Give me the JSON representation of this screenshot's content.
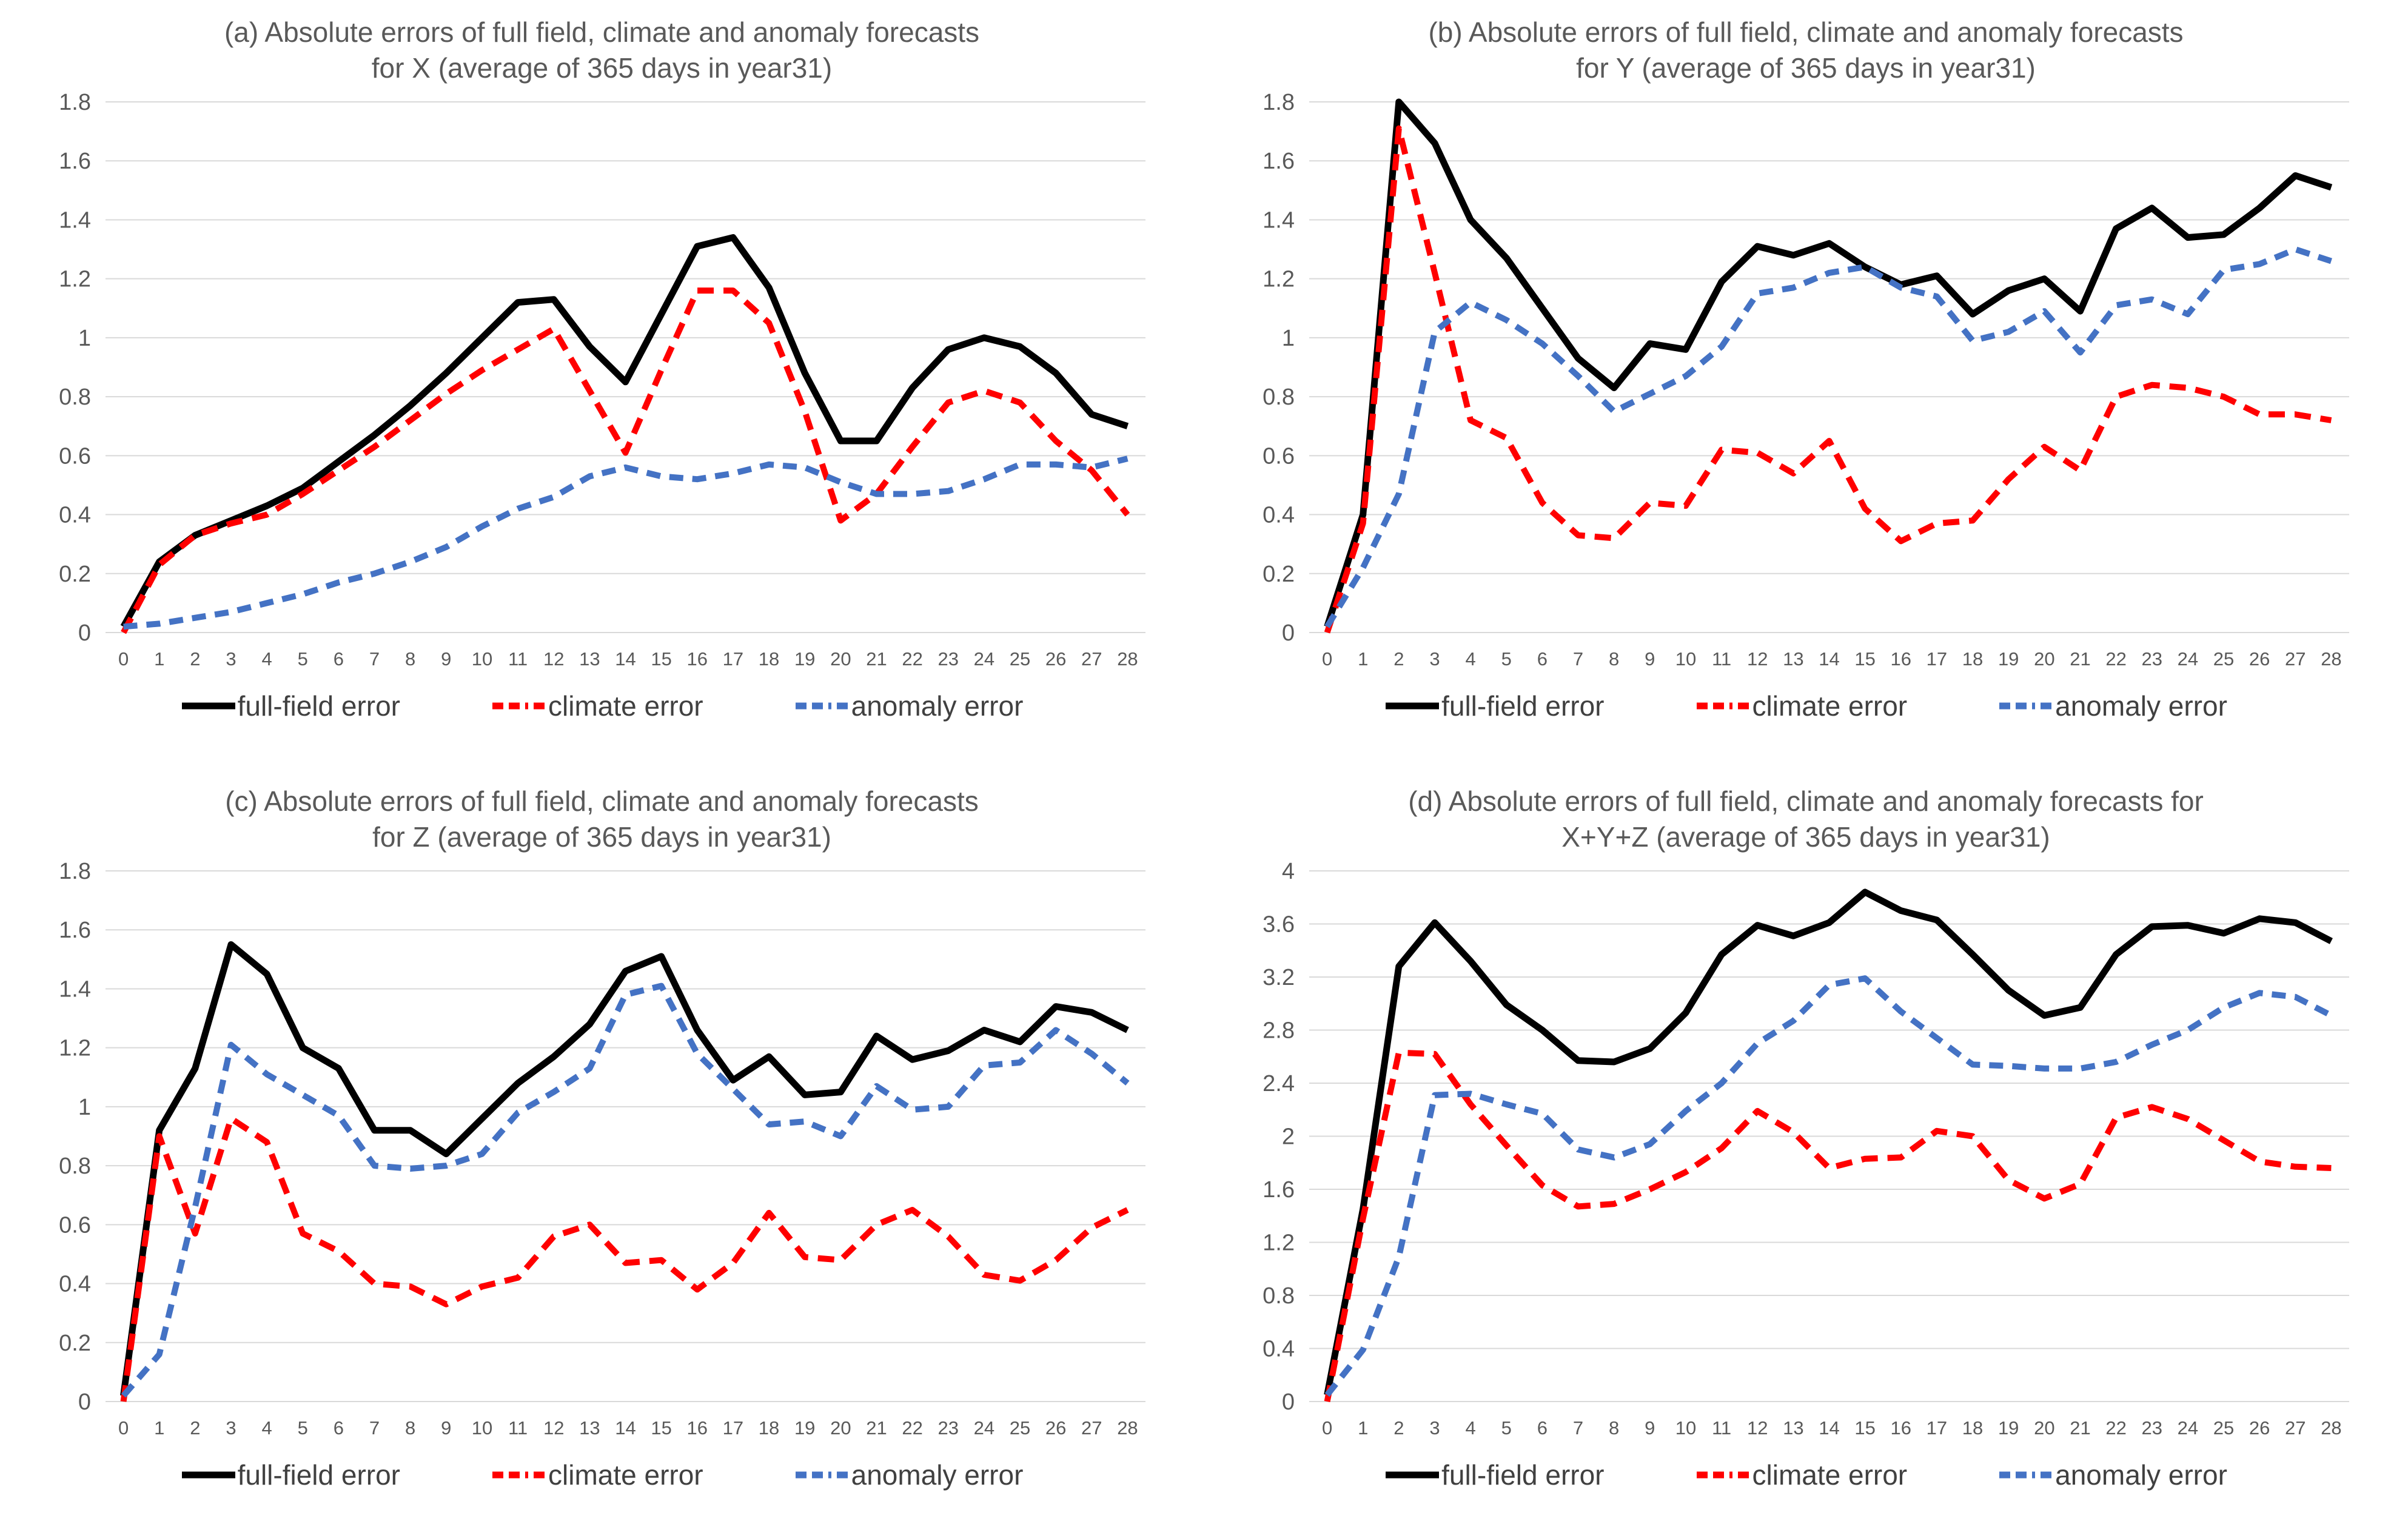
{
  "figure": {
    "background": "#ffffff",
    "grid_color": "#d9d9d9",
    "title_color": "#595959",
    "tick_color": "#595959",
    "legend_text_color": "#404040",
    "series_colors": {
      "full_field": "#000000",
      "climate": "#ff0000",
      "anomaly": "#4472c4"
    },
    "series_styles": {
      "full_field": {
        "width": 11,
        "dash": ""
      },
      "climate": {
        "width": 10,
        "dash": "27 16"
      },
      "anomaly": {
        "width": 10,
        "dash": "23 15"
      }
    },
    "legend": [
      {
        "key": "full_field",
        "label": "full-field error",
        "style": "solid"
      },
      {
        "key": "climate",
        "label": "climate error",
        "style": "dashed"
      },
      {
        "key": "anomaly",
        "label": "anomaly error",
        "style": "dashed"
      }
    ]
  },
  "chart_data": [
    {
      "id": "a",
      "type": "line",
      "title_line1": "(a) Absolute errors of full field, climate and anomaly forecasts",
      "title_line2": "for X (average of 365 days in year31)",
      "xlabel": "",
      "ylabel": "",
      "grid": true,
      "legend_position": "bottom",
      "ylim": [
        0,
        1.8
      ],
      "ytick_step": 0.2,
      "yticks": [
        "0",
        "0.2",
        "0.4",
        "0.6",
        "0.8",
        "1",
        "1.2",
        "1.4",
        "1.6",
        "1.8"
      ],
      "x": [
        0,
        1,
        2,
        3,
        4,
        5,
        6,
        7,
        8,
        9,
        10,
        11,
        12,
        13,
        14,
        15,
        16,
        17,
        18,
        19,
        20,
        21,
        22,
        23,
        24,
        25,
        26,
        27,
        28
      ],
      "series": [
        {
          "name": "full-field error",
          "key": "full_field",
          "values": [
            0.02,
            0.24,
            0.33,
            0.38,
            0.43,
            0.49,
            0.58,
            0.67,
            0.77,
            0.88,
            1.0,
            1.12,
            1.13,
            0.97,
            0.85,
            1.08,
            1.31,
            1.34,
            1.17,
            0.88,
            0.65,
            0.65,
            0.83,
            0.96,
            1.0,
            0.97,
            0.88,
            0.74,
            0.7
          ]
        },
        {
          "name": "climate error",
          "key": "climate",
          "values": [
            0.0,
            0.23,
            0.33,
            0.37,
            0.4,
            0.47,
            0.55,
            0.63,
            0.72,
            0.81,
            0.89,
            0.96,
            1.03,
            0.82,
            0.61,
            0.89,
            1.16,
            1.16,
            1.05,
            0.75,
            0.38,
            0.47,
            0.63,
            0.78,
            0.82,
            0.78,
            0.65,
            0.55,
            0.4
          ]
        },
        {
          "name": "anomaly error",
          "key": "anomaly",
          "values": [
            0.02,
            0.03,
            0.05,
            0.07,
            0.1,
            0.13,
            0.17,
            0.2,
            0.24,
            0.29,
            0.36,
            0.42,
            0.46,
            0.53,
            0.56,
            0.53,
            0.52,
            0.54,
            0.57,
            0.56,
            0.51,
            0.47,
            0.47,
            0.48,
            0.52,
            0.57,
            0.57,
            0.56,
            0.59
          ]
        }
      ]
    },
    {
      "id": "b",
      "type": "line",
      "title_line1": "(b) Absolute errors of full field, climate and anomaly forecasts",
      "title_line2": "for Y (average of 365 days in year31)",
      "xlabel": "",
      "ylabel": "",
      "grid": true,
      "legend_position": "bottom",
      "ylim": [
        0,
        1.8
      ],
      "ytick_step": 0.2,
      "yticks": [
        "0",
        "0.2",
        "0.4",
        "0.6",
        "0.8",
        "1",
        "1.2",
        "1.4",
        "1.6",
        "1.8"
      ],
      "x": [
        0,
        1,
        2,
        3,
        4,
        5,
        6,
        7,
        8,
        9,
        10,
        11,
        12,
        13,
        14,
        15,
        16,
        17,
        18,
        19,
        20,
        21,
        22,
        23,
        24,
        25,
        26,
        27,
        28
      ],
      "series": [
        {
          "name": "full-field error",
          "key": "full_field",
          "values": [
            0.02,
            0.4,
            1.8,
            1.66,
            1.4,
            1.27,
            1.1,
            0.93,
            0.83,
            0.98,
            0.96,
            1.19,
            1.31,
            1.28,
            1.32,
            1.24,
            1.18,
            1.21,
            1.08,
            1.16,
            1.2,
            1.09,
            1.37,
            1.44,
            1.34,
            1.35,
            1.44,
            1.55,
            1.51
          ]
        },
        {
          "name": "climate error",
          "key": "climate",
          "values": [
            0.0,
            0.37,
            1.71,
            1.22,
            0.72,
            0.66,
            0.44,
            0.33,
            0.32,
            0.44,
            0.43,
            0.62,
            0.61,
            0.54,
            0.65,
            0.42,
            0.31,
            0.37,
            0.38,
            0.52,
            0.63,
            0.55,
            0.8,
            0.84,
            0.83,
            0.8,
            0.74,
            0.74,
            0.72
          ]
        },
        {
          "name": "anomaly error",
          "key": "anomaly",
          "values": [
            0.02,
            0.22,
            0.47,
            1.02,
            1.12,
            1.06,
            0.98,
            0.87,
            0.75,
            0.81,
            0.87,
            0.97,
            1.15,
            1.17,
            1.22,
            1.24,
            1.17,
            1.14,
            0.99,
            1.02,
            1.09,
            0.95,
            1.11,
            1.13,
            1.08,
            1.23,
            1.25,
            1.3,
            1.26
          ]
        }
      ]
    },
    {
      "id": "c",
      "type": "line",
      "title_line1": "(c) Absolute errors of full field, climate and anomaly forecasts",
      "title_line2": "for Z (average of 365 days in year31)",
      "xlabel": "",
      "ylabel": "",
      "grid": true,
      "legend_position": "bottom",
      "ylim": [
        0,
        1.8
      ],
      "ytick_step": 0.2,
      "yticks": [
        "0",
        "0.2",
        "0.4",
        "0.6",
        "0.8",
        "1",
        "1.2",
        "1.4",
        "1.6",
        "1.8"
      ],
      "x": [
        0,
        1,
        2,
        3,
        4,
        5,
        6,
        7,
        8,
        9,
        10,
        11,
        12,
        13,
        14,
        15,
        16,
        17,
        18,
        19,
        20,
        21,
        22,
        23,
        24,
        25,
        26,
        27,
        28
      ],
      "series": [
        {
          "name": "full-field error",
          "key": "full_field",
          "values": [
            0.02,
            0.92,
            1.13,
            1.55,
            1.45,
            1.2,
            1.13,
            0.92,
            0.92,
            0.84,
            0.96,
            1.08,
            1.17,
            1.28,
            1.46,
            1.51,
            1.26,
            1.09,
            1.17,
            1.04,
            1.05,
            1.24,
            1.16,
            1.19,
            1.26,
            1.22,
            1.34,
            1.32,
            1.26
          ]
        },
        {
          "name": "climate error",
          "key": "climate",
          "values": [
            0.0,
            0.9,
            0.57,
            0.96,
            0.88,
            0.57,
            0.51,
            0.4,
            0.39,
            0.33,
            0.39,
            0.42,
            0.56,
            0.6,
            0.47,
            0.48,
            0.38,
            0.47,
            0.64,
            0.49,
            0.48,
            0.6,
            0.65,
            0.56,
            0.43,
            0.41,
            0.48,
            0.59,
            0.65
          ]
        },
        {
          "name": "anomaly error",
          "key": "anomaly",
          "values": [
            0.02,
            0.16,
            0.66,
            1.21,
            1.11,
            1.04,
            0.97,
            0.8,
            0.79,
            0.8,
            0.84,
            0.98,
            1.05,
            1.13,
            1.38,
            1.41,
            1.18,
            1.06,
            0.94,
            0.95,
            0.9,
            1.07,
            0.99,
            1.0,
            1.14,
            1.15,
            1.26,
            1.18,
            1.08
          ]
        }
      ]
    },
    {
      "id": "d",
      "type": "line",
      "title_line1": "(d) Absolute errors of full field, climate and anomaly forecasts for",
      "title_line2": "X+Y+Z (average of 365 days in year31)",
      "xlabel": "",
      "ylabel": "",
      "grid": true,
      "legend_position": "bottom",
      "ylim": [
        0,
        4
      ],
      "ytick_step": 0.4,
      "yticks": [
        "0",
        "0.4",
        "0.8",
        "1.2",
        "1.6",
        "2",
        "2.4",
        "2.8",
        "3.2",
        "3.6",
        "4"
      ],
      "x": [
        0,
        1,
        2,
        3,
        4,
        5,
        6,
        7,
        8,
        9,
        10,
        11,
        12,
        13,
        14,
        15,
        16,
        17,
        18,
        19,
        20,
        21,
        22,
        23,
        24,
        25,
        26,
        27,
        28
      ],
      "series": [
        {
          "name": "full-field error",
          "key": "full_field",
          "values": [
            0.05,
            1.45,
            3.28,
            3.61,
            3.32,
            2.99,
            2.8,
            2.57,
            2.56,
            2.66,
            2.93,
            3.37,
            3.59,
            3.51,
            3.61,
            3.84,
            3.7,
            3.63,
            3.37,
            3.1,
            2.91,
            2.97,
            3.37,
            3.58,
            3.59,
            3.53,
            3.64,
            3.61,
            3.47
          ]
        },
        {
          "name": "climate error",
          "key": "climate",
          "values": [
            0.0,
            1.38,
            2.63,
            2.62,
            2.24,
            1.93,
            1.63,
            1.47,
            1.49,
            1.6,
            1.73,
            1.91,
            2.19,
            2.03,
            1.76,
            1.83,
            1.84,
            2.04,
            2.0,
            1.67,
            1.53,
            1.64,
            2.14,
            2.22,
            2.13,
            1.97,
            1.81,
            1.77,
            1.76
          ]
        },
        {
          "name": "anomaly error",
          "key": "anomaly",
          "values": [
            0.05,
            0.39,
            1.09,
            2.31,
            2.32,
            2.24,
            2.17,
            1.9,
            1.84,
            1.94,
            2.19,
            2.4,
            2.7,
            2.87,
            3.14,
            3.19,
            2.94,
            2.74,
            2.54,
            2.53,
            2.51,
            2.51,
            2.56,
            2.69,
            2.8,
            2.97,
            3.08,
            3.05,
            2.91
          ]
        }
      ]
    }
  ]
}
